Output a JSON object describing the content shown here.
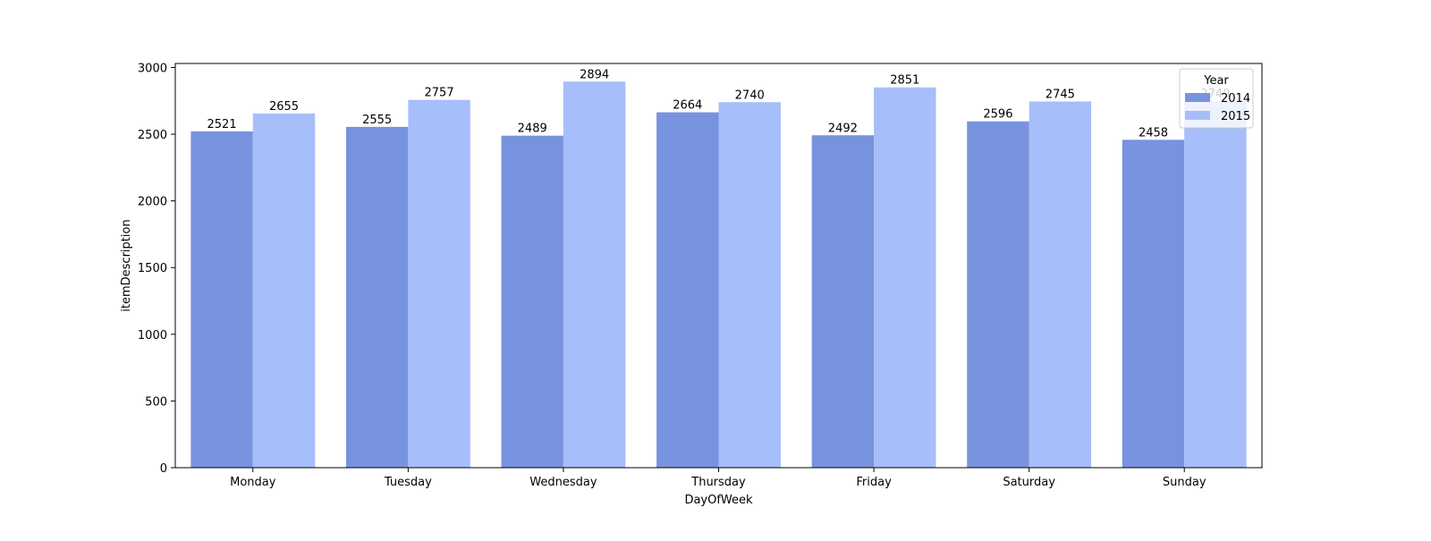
{
  "chart_data": {
    "type": "bar",
    "title": "",
    "xlabel": "DayOfWeek",
    "ylabel": "itemDescription",
    "categories": [
      "Monday",
      "Tuesday",
      "Wednesday",
      "Thursday",
      "Friday",
      "Saturday",
      "Sunday"
    ],
    "series": [
      {
        "name": "2014",
        "color": "#7893de",
        "values": [
          2521,
          2555,
          2489,
          2664,
          2492,
          2596,
          2458
        ]
      },
      {
        "name": "2015",
        "color": "#a6befa",
        "values": [
          2655,
          2757,
          2894,
          2740,
          2851,
          2745,
          2749
        ]
      }
    ],
    "ylim": [
      0,
      3030
    ],
    "yticks": [
      0,
      500,
      1000,
      1500,
      2000,
      2500,
      3000
    ],
    "grid": false,
    "legend": {
      "title": "Year",
      "placement": "top-right"
    }
  }
}
